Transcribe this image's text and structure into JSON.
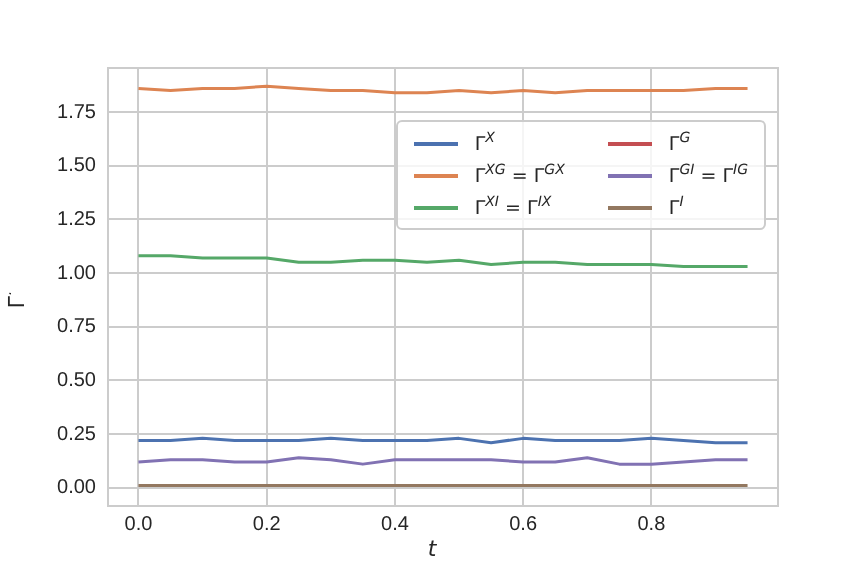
{
  "chart_data": {
    "type": "line",
    "xlabel": "t",
    "ylabel": "Γ$^{·}$",
    "x": [
      0,
      0.05,
      0.1,
      0.15,
      0.2,
      0.25,
      0.3,
      0.35,
      0.4,
      0.45,
      0.5,
      0.55,
      0.6,
      0.65,
      0.7,
      0.75,
      0.8,
      0.85,
      0.9,
      0.95
    ],
    "xlim": [
      -0.0475,
      0.9975
    ],
    "xticks": [
      {
        "value": 0,
        "label": "0.0"
      },
      {
        "value": 0.2,
        "label": "0.2"
      },
      {
        "value": 0.4,
        "label": "0.4"
      },
      {
        "value": 0.6,
        "label": "0.6"
      },
      {
        "value": 0.8,
        "label": "0.8"
      }
    ],
    "ylim": [
      -0.085,
      1.955
    ],
    "yticks": [
      {
        "value": 0,
        "label": "0.00"
      },
      {
        "value": 0.25,
        "label": "0.25"
      },
      {
        "value": 0.5,
        "label": "0.50"
      },
      {
        "value": 0.75,
        "label": "0.75"
      },
      {
        "value": 1,
        "label": "1.00"
      },
      {
        "value": 1.25,
        "label": "1.25"
      },
      {
        "value": 1.5,
        "label": "1.50"
      },
      {
        "value": 1.75,
        "label": "1.75"
      }
    ],
    "grid": true,
    "legend": "top right",
    "marker": "none",
    "line_style": "solid",
    "series": [
      {
        "name": "Γ$^{X}$",
        "color": "#4c72b0",
        "values": [
          0.22,
          0.22,
          0.23,
          0.22,
          0.22,
          0.22,
          0.23,
          0.22,
          0.22,
          0.22,
          0.23,
          0.21,
          0.23,
          0.22,
          0.22,
          0.22,
          0.23,
          0.22,
          0.21,
          0.21
        ]
      },
      {
        "name": "Γ$^{XG}$ = Γ$^{GX}$",
        "color": "#dd8452",
        "values": [
          1.86,
          1.85,
          1.86,
          1.86,
          1.87,
          1.86,
          1.85,
          1.85,
          1.84,
          1.84,
          1.85,
          1.84,
          1.85,
          1.84,
          1.85,
          1.85,
          1.85,
          1.85,
          1.86,
          1.86
        ]
      },
      {
        "name": "Γ$^{XI}$ = Γ$^{IX}$",
        "color": "#55a868",
        "values": [
          1.08,
          1.08,
          1.07,
          1.07,
          1.07,
          1.05,
          1.05,
          1.06,
          1.06,
          1.05,
          1.06,
          1.04,
          1.05,
          1.05,
          1.04,
          1.04,
          1.04,
          1.03,
          1.03,
          1.03
        ]
      },
      {
        "name": "Γ$^{G}$",
        "color": "#c44e52",
        "values": [
          null,
          null,
          null,
          null,
          null,
          null,
          null,
          null,
          null,
          null,
          null,
          null,
          null,
          null,
          null,
          null,
          null,
          null,
          null,
          null
        ]
      },
      {
        "name": "Γ$^{GI}$ = Γ$^{IG}$",
        "color": "#8172b3",
        "values": [
          0.12,
          0.13,
          0.13,
          0.12,
          0.12,
          0.14,
          0.13,
          0.11,
          0.13,
          0.13,
          0.13,
          0.13,
          0.12,
          0.12,
          0.14,
          0.11,
          0.11,
          0.12,
          0.13,
          0.13
        ]
      },
      {
        "name": "Γ$^{I}$",
        "color": "#937860",
        "values": [
          0.01,
          0.01,
          0.01,
          0.01,
          0.01,
          0.01,
          0.01,
          0.01,
          0.01,
          0.01,
          0.01,
          0.01,
          0.01,
          0.01,
          0.01,
          0.01,
          0.01,
          0.01,
          0.01,
          0.01
        ]
      }
    ]
  }
}
